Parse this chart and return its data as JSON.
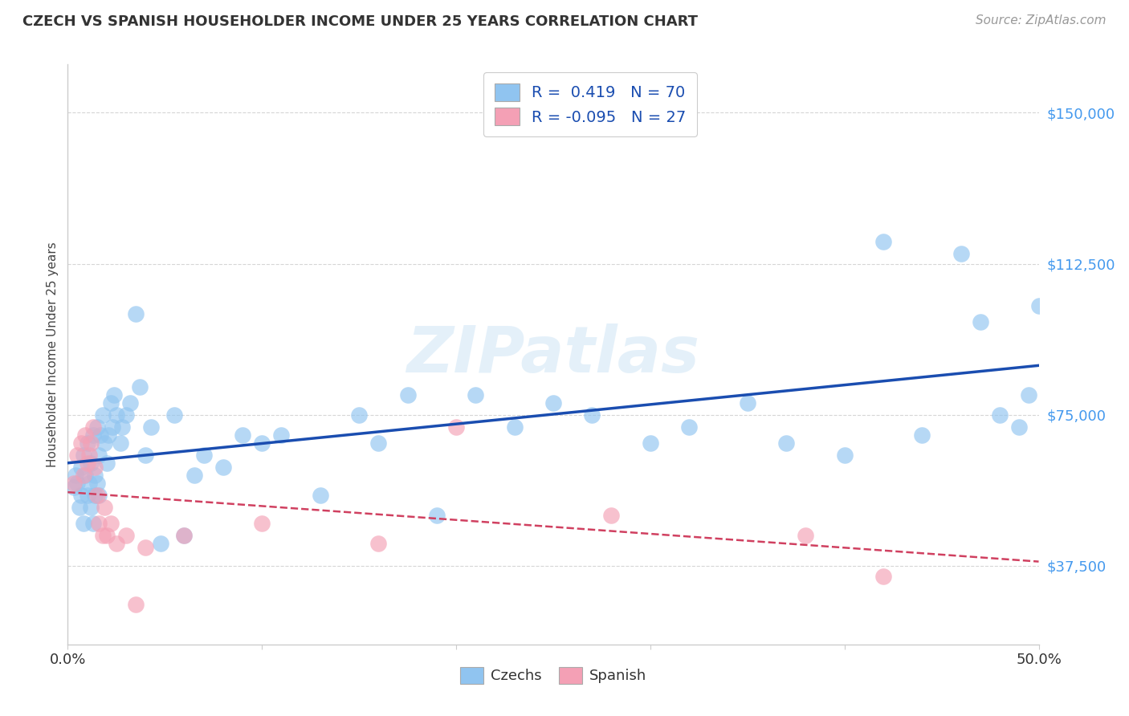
{
  "title": "CZECH VS SPANISH HOUSEHOLDER INCOME UNDER 25 YEARS CORRELATION CHART",
  "source": "Source: ZipAtlas.com",
  "ylabel": "Householder Income Under 25 years",
  "xlim": [
    0.0,
    0.5
  ],
  "ylim": [
    18000,
    162000
  ],
  "yticks": [
    37500,
    75000,
    112500,
    150000
  ],
  "ytick_labels": [
    "$37,500",
    "$75,000",
    "$112,500",
    "$150,000"
  ],
  "watermark": "ZIPatlas",
  "legend_r1": "R =  0.419   N = 70",
  "legend_r2": "R = -0.095   N = 27",
  "czech_color": "#90c4f0",
  "spanish_color": "#f4a0b5",
  "czech_line_color": "#1a4db0",
  "spanish_line_color": "#d04060",
  "title_color": "#333333",
  "axis_color": "#cccccc",
  "ytick_color": "#4499ee",
  "background_color": "#ffffff",
  "czechs_x": [
    0.003,
    0.004,
    0.005,
    0.006,
    0.007,
    0.007,
    0.008,
    0.008,
    0.009,
    0.01,
    0.01,
    0.011,
    0.012,
    0.012,
    0.013,
    0.013,
    0.014,
    0.014,
    0.015,
    0.015,
    0.016,
    0.016,
    0.017,
    0.018,
    0.019,
    0.02,
    0.021,
    0.022,
    0.023,
    0.024,
    0.025,
    0.027,
    0.028,
    0.03,
    0.032,
    0.035,
    0.037,
    0.04,
    0.043,
    0.048,
    0.055,
    0.06,
    0.065,
    0.07,
    0.08,
    0.09,
    0.1,
    0.11,
    0.13,
    0.15,
    0.16,
    0.175,
    0.19,
    0.21,
    0.23,
    0.25,
    0.27,
    0.3,
    0.32,
    0.35,
    0.37,
    0.4,
    0.42,
    0.44,
    0.46,
    0.47,
    0.48,
    0.49,
    0.495,
    0.5
  ],
  "czechs_y": [
    57000,
    60000,
    58000,
    52000,
    55000,
    62000,
    48000,
    65000,
    60000,
    55000,
    68000,
    58000,
    52000,
    63000,
    48000,
    70000,
    55000,
    60000,
    58000,
    72000,
    65000,
    55000,
    70000,
    75000,
    68000,
    63000,
    70000,
    78000,
    72000,
    80000,
    75000,
    68000,
    72000,
    75000,
    78000,
    100000,
    82000,
    65000,
    72000,
    43000,
    75000,
    45000,
    60000,
    65000,
    62000,
    70000,
    68000,
    70000,
    55000,
    75000,
    68000,
    80000,
    50000,
    80000,
    72000,
    78000,
    75000,
    68000,
    72000,
    78000,
    68000,
    65000,
    118000,
    70000,
    115000,
    98000,
    75000,
    72000,
    80000,
    102000
  ],
  "spanish_x": [
    0.003,
    0.005,
    0.007,
    0.008,
    0.009,
    0.01,
    0.011,
    0.012,
    0.013,
    0.014,
    0.015,
    0.016,
    0.018,
    0.019,
    0.02,
    0.022,
    0.025,
    0.03,
    0.035,
    0.04,
    0.06,
    0.1,
    0.16,
    0.2,
    0.28,
    0.38,
    0.42
  ],
  "spanish_y": [
    58000,
    65000,
    68000,
    60000,
    70000,
    63000,
    65000,
    68000,
    72000,
    62000,
    55000,
    48000,
    45000,
    52000,
    45000,
    48000,
    43000,
    45000,
    28000,
    42000,
    45000,
    48000,
    43000,
    72000,
    50000,
    45000,
    35000
  ]
}
